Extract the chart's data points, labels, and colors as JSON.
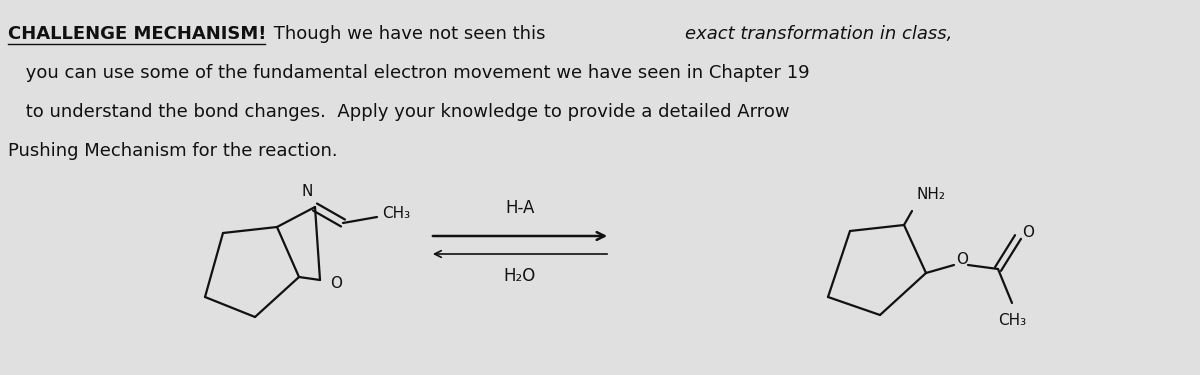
{
  "bg_color": "#e0e0e0",
  "text_color": "#111111",
  "font_size_main": 13.0,
  "font_size_chem": 11.0,
  "font_size_label": 12.0,
  "line1_bold": "CHALLENGE MECHANISM!",
  "line1_normal": " Though we have not seen this ",
  "line1_italic": "exact transformation in class,",
  "line2": " you can use some of the fundamental electron movement we have seen in Chapter 19",
  "line3": " to understand the bond changes.  Apply your knowledge to provide a detailed Arrow",
  "line4": "Pushing Mechanism for the reaction.",
  "reagent_top": "H-A",
  "reagent_bot": "H₂O",
  "label_N": "N",
  "label_O_react": "O",
  "label_CH3_react": "CH₃",
  "label_NH2": "NH₂",
  "label_O_prod": "O",
  "label_CH3_prod": "CH₃"
}
